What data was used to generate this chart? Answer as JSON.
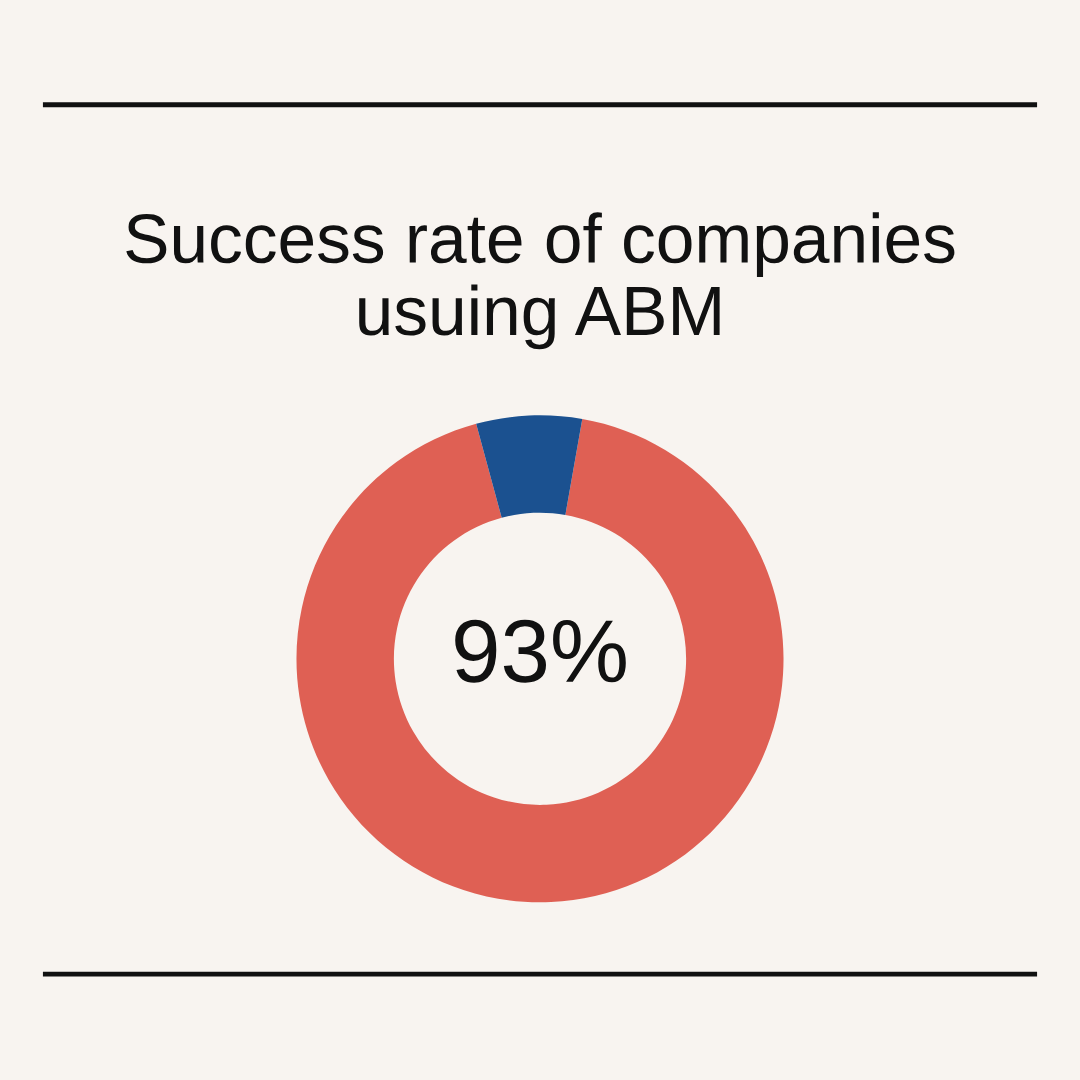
{
  "chart_data": {
    "type": "donut",
    "title": "Success rate of companies\nusuing ABM",
    "categories": [
      null,
      null
    ],
    "values": [
      93,
      7
    ],
    "colors": [
      "#df6054",
      "#1b5190"
    ],
    "value_labels": [
      "93%",
      null
    ]
  }
}
